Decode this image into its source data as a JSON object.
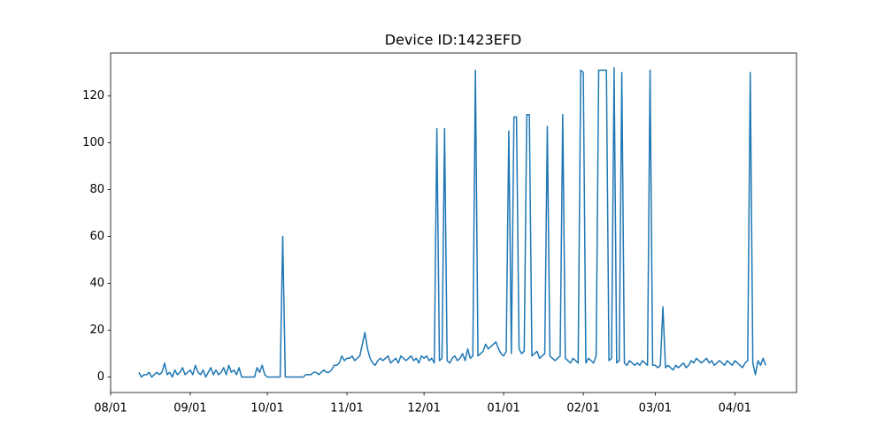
{
  "chart_data": {
    "type": "line",
    "title": "Device ID:1423EFD",
    "color": "#1f77b4",
    "x": [
      "08/12",
      "08/13",
      "08/14",
      "08/15",
      "08/16",
      "08/17",
      "08/18",
      "08/19",
      "08/20",
      "08/21",
      "08/22",
      "08/23",
      "08/24",
      "08/25",
      "08/26",
      "08/27",
      "08/28",
      "08/29",
      "08/30",
      "08/31",
      "09/01",
      "09/02",
      "09/03",
      "09/04",
      "09/05",
      "09/06",
      "09/07",
      "09/08",
      "09/09",
      "09/10",
      "09/11",
      "09/12",
      "09/13",
      "09/14",
      "09/15",
      "09/16",
      "09/17",
      "09/18",
      "09/19",
      "09/20",
      "09/21",
      "09/22",
      "09/23",
      "09/24",
      "09/25",
      "09/26",
      "09/27",
      "09/28",
      "09/29",
      "09/30",
      "10/01",
      "10/02",
      "10/03",
      "10/04",
      "10/05",
      "10/06",
      "10/07",
      "10/08",
      "10/09",
      "10/10",
      "10/11",
      "10/12",
      "10/13",
      "10/14",
      "10/15",
      "10/16",
      "10/17",
      "10/18",
      "10/19",
      "10/20",
      "10/21",
      "10/22",
      "10/23",
      "10/24",
      "10/25",
      "10/26",
      "10/27",
      "10/28",
      "10/29",
      "10/30",
      "10/31",
      "11/01",
      "11/02",
      "11/03",
      "11/04",
      "11/05",
      "11/06",
      "11/07",
      "11/08",
      "11/09",
      "11/10",
      "11/11",
      "11/12",
      "11/13",
      "11/14",
      "11/15",
      "11/16",
      "11/17",
      "11/18",
      "11/19",
      "11/20",
      "11/21",
      "11/22",
      "11/23",
      "11/24",
      "11/25",
      "11/26",
      "11/27",
      "11/28",
      "11/29",
      "11/30",
      "12/01",
      "12/02",
      "12/03",
      "12/04",
      "12/05",
      "12/06",
      "12/07",
      "12/08",
      "12/09",
      "12/10",
      "12/11",
      "12/12",
      "12/13",
      "12/14",
      "12/15",
      "12/16",
      "12/17",
      "12/18",
      "12/19",
      "12/20",
      "12/21",
      "12/22",
      "12/23",
      "12/24",
      "12/25",
      "12/26",
      "12/27",
      "12/28",
      "12/29",
      "12/30",
      "12/31",
      "01/01",
      "01/02",
      "01/03",
      "01/04",
      "01/05",
      "01/06",
      "01/07",
      "01/08",
      "01/09",
      "01/10",
      "01/11",
      "01/12",
      "01/13",
      "01/14",
      "01/15",
      "01/16",
      "01/17",
      "01/18",
      "01/19",
      "01/20",
      "01/21",
      "01/22",
      "01/23",
      "01/24",
      "01/25",
      "01/26",
      "01/27",
      "01/28",
      "01/29",
      "01/30",
      "01/31",
      "02/01",
      "02/02",
      "02/03",
      "02/04",
      "02/05",
      "02/06",
      "02/07",
      "02/08",
      "02/09",
      "02/10",
      "02/11",
      "02/12",
      "02/13",
      "02/14",
      "02/15",
      "02/16",
      "02/17",
      "02/18",
      "02/19",
      "02/20",
      "02/21",
      "02/22",
      "02/23",
      "02/24",
      "02/25",
      "02/26",
      "02/27",
      "02/28",
      "03/01",
      "03/02",
      "03/03",
      "03/04",
      "03/05",
      "03/06",
      "03/07",
      "03/08",
      "03/09",
      "03/10",
      "03/11",
      "03/12",
      "03/13",
      "03/14",
      "03/15",
      "03/16",
      "03/17",
      "03/18",
      "03/19",
      "03/20",
      "03/21",
      "03/22",
      "03/23",
      "03/24",
      "03/25",
      "03/26",
      "03/27",
      "03/28",
      "03/29",
      "03/30",
      "03/31",
      "04/01",
      "04/02",
      "04/03",
      "04/04",
      "04/05",
      "04/06",
      "04/07",
      "04/08",
      "04/09",
      "04/10",
      "04/11",
      "04/12",
      "04/13"
    ],
    "values": [
      2,
      0,
      1,
      1,
      2,
      0,
      1,
      2,
      1,
      2,
      6,
      1,
      2,
      0,
      3,
      1,
      2,
      4,
      1,
      2,
      3,
      1,
      5,
      2,
      1,
      3,
      0,
      2,
      4,
      1,
      3,
      1,
      2,
      4,
      1,
      5,
      2,
      3,
      1,
      4,
      0,
      0,
      0,
      0,
      0,
      0,
      4,
      2,
      5,
      1,
      0,
      0,
      0,
      0,
      0,
      0,
      60,
      0,
      0,
      0,
      0,
      0,
      0,
      0,
      0,
      1,
      1,
      1,
      2,
      2,
      1,
      2,
      3,
      2,
      2,
      3,
      5,
      5,
      6,
      9,
      7,
      8,
      8,
      9,
      7,
      8,
      9,
      14,
      19,
      12,
      8,
      6,
      5,
      7,
      8,
      7,
      8,
      9,
      6,
      7,
      8,
      6,
      9,
      8,
      7,
      8,
      9,
      7,
      8,
      6,
      9,
      8,
      9,
      7,
      8,
      6,
      106,
      7,
      8,
      106,
      7,
      6,
      8,
      9,
      7,
      8,
      10,
      7,
      12,
      8,
      9,
      131,
      9,
      10,
      11,
      14,
      12,
      13,
      14,
      15,
      12,
      10,
      9,
      11,
      105,
      10,
      111,
      111,
      12,
      10,
      11,
      112,
      112,
      9,
      10,
      11,
      8,
      9,
      10,
      107,
      9,
      8,
      7,
      8,
      9,
      112,
      8,
      7,
      6,
      8,
      7,
      6,
      131,
      130,
      6,
      8,
      7,
      6,
      9,
      131,
      131,
      131,
      131,
      7,
      8,
      132,
      6,
      7,
      130,
      6,
      5,
      7,
      6,
      5,
      6,
      5,
      7,
      6,
      5,
      131,
      5,
      5,
      4,
      5,
      30,
      4,
      5,
      4,
      3,
      5,
      4,
      5,
      6,
      4,
      5,
      7,
      6,
      8,
      7,
      6,
      7,
      8,
      6,
      7,
      5,
      6,
      7,
      6,
      5,
      7,
      6,
      5,
      7,
      6,
      5,
      4,
      6,
      7,
      130,
      6,
      1,
      7,
      5,
      8,
      5
    ],
    "xlim": [
      "08/01",
      "04/25"
    ],
    "xticks": [
      "08/01",
      "09/01",
      "10/01",
      "11/01",
      "12/01",
      "01/01",
      "02/01",
      "03/01",
      "04/01"
    ],
    "ylim": [
      -6.6,
      138.3
    ],
    "yticks": [
      0,
      20,
      40,
      60,
      80,
      100,
      120
    ]
  }
}
